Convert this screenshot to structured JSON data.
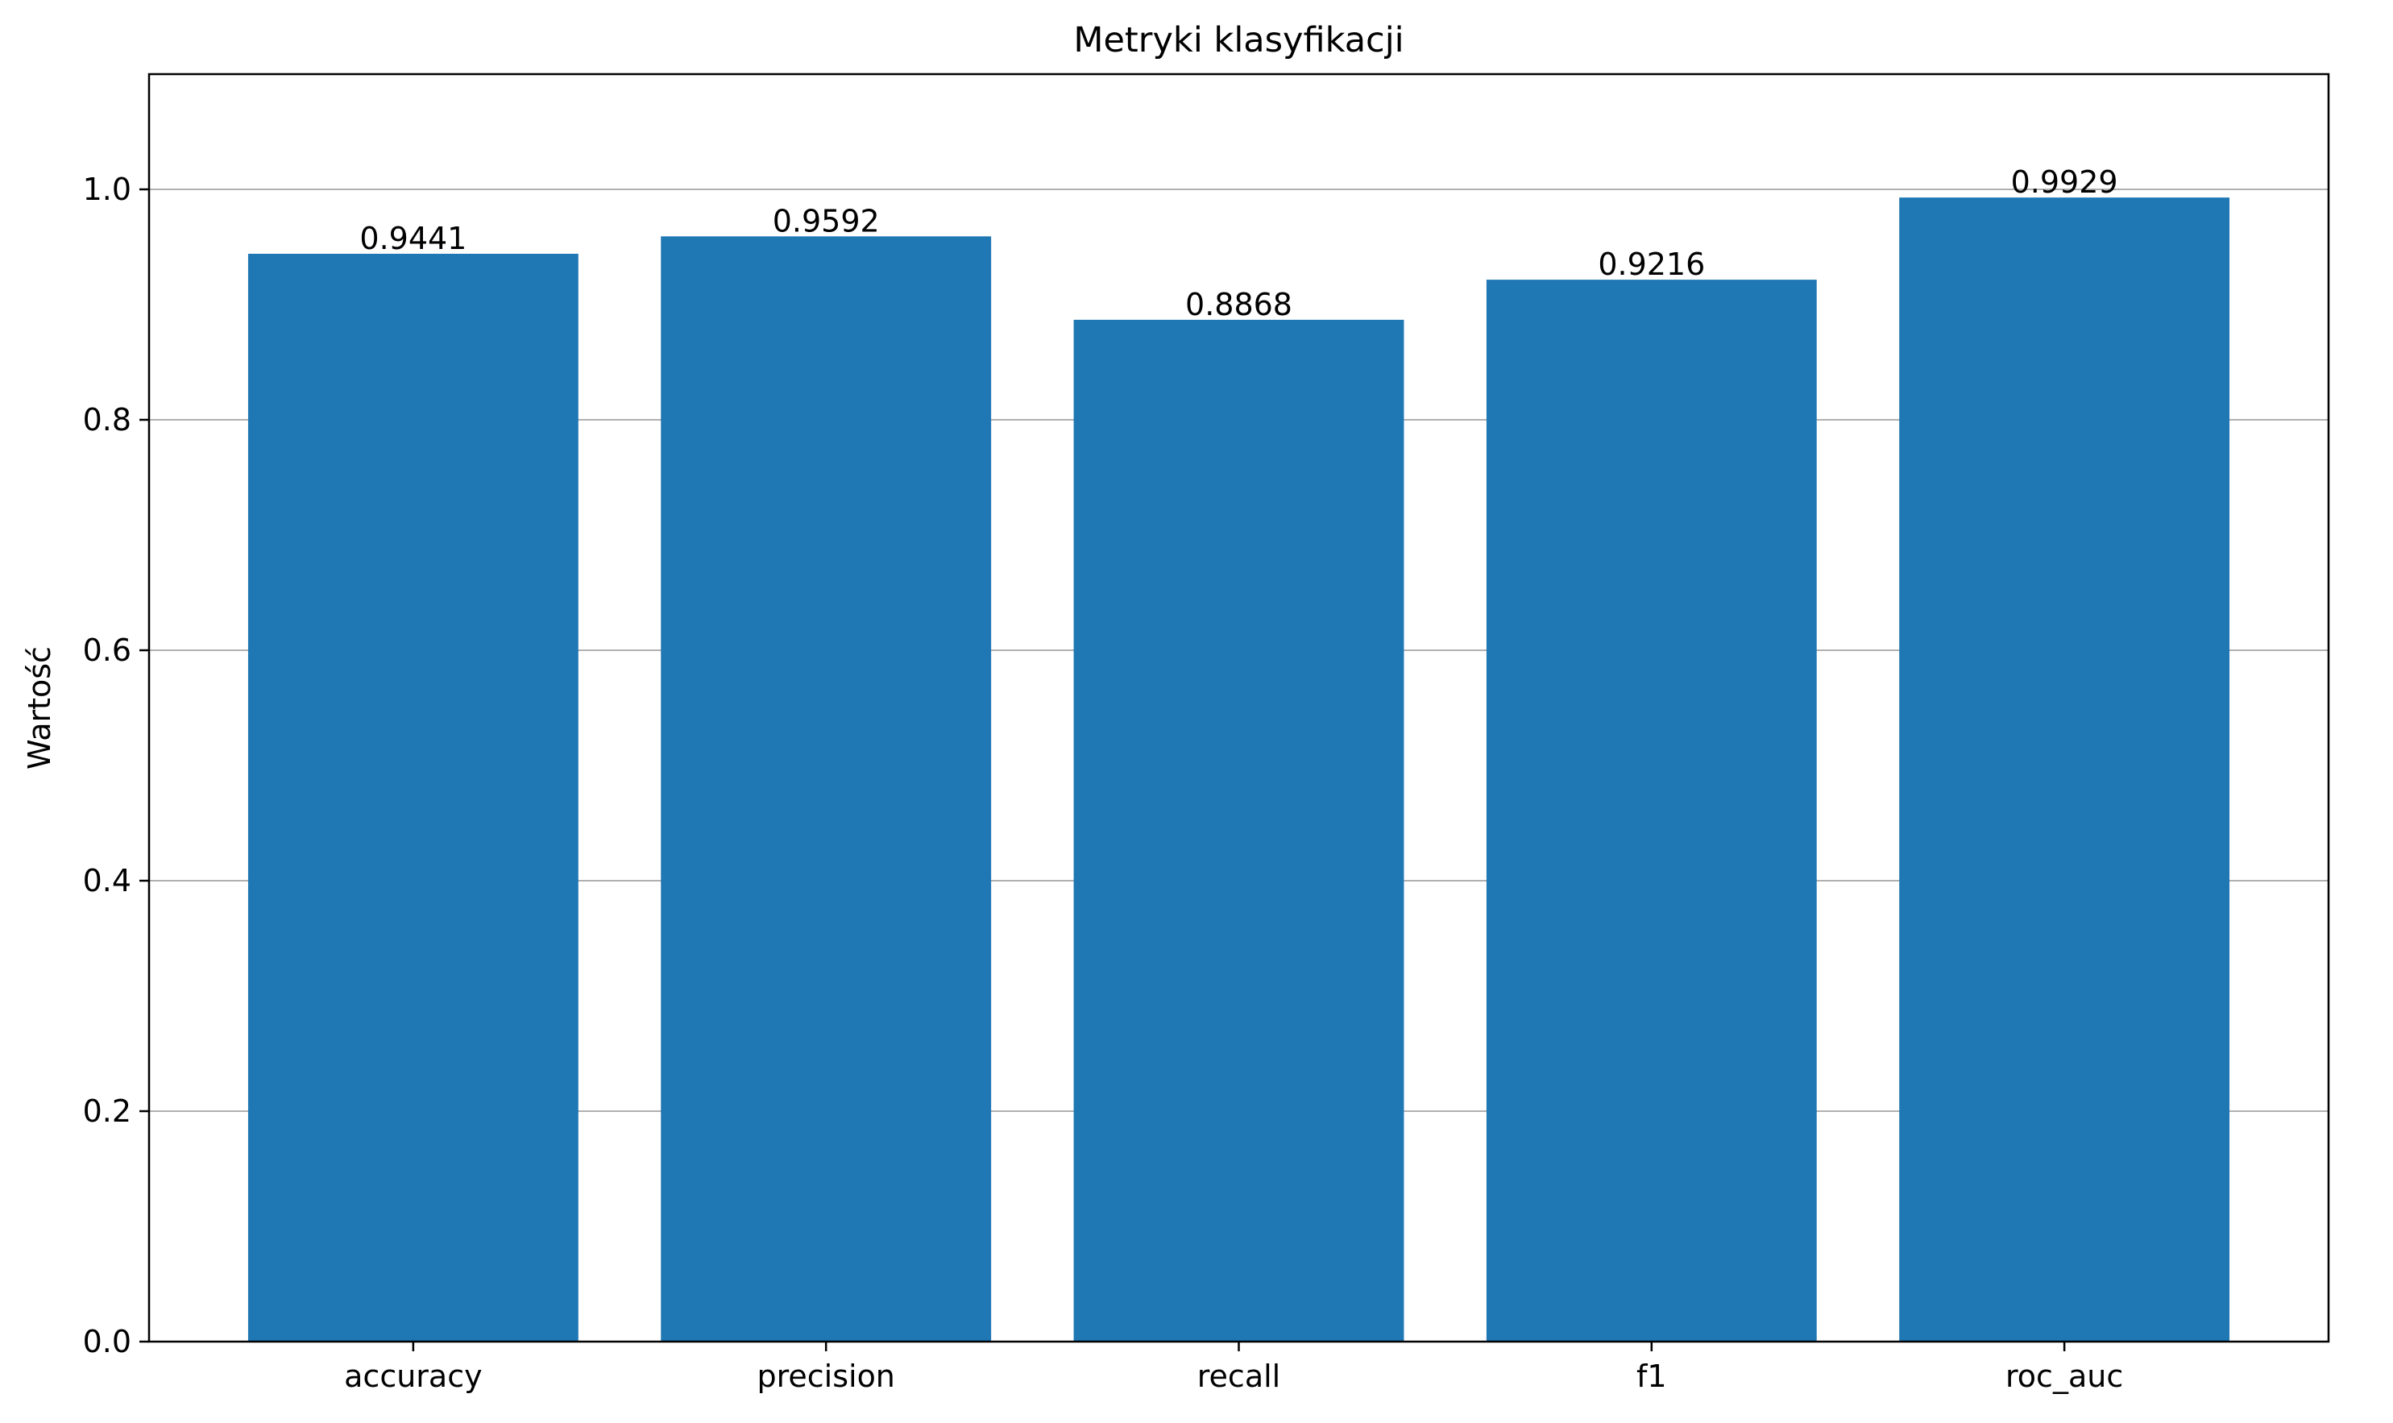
{
  "chart_data": {
    "type": "bar",
    "title": "Metryki klasyfikacji",
    "xlabel": "",
    "ylabel": "Wartość",
    "categories": [
      "accuracy",
      "precision",
      "recall",
      "f1",
      "roc_auc"
    ],
    "values": [
      0.9441,
      0.9592,
      0.8868,
      0.9216,
      0.9929
    ],
    "value_labels": [
      "0.9441",
      "0.9592",
      "0.8868",
      "0.9216",
      "0.9929"
    ],
    "ylim": [
      0,
      1.1
    ],
    "yticks": [
      0.0,
      0.2,
      0.4,
      0.6,
      0.8,
      1.0
    ],
    "ytick_labels": [
      "0.0",
      "0.2",
      "0.4",
      "0.6",
      "0.8",
      "1.0"
    ],
    "grid": "y",
    "legend": "none",
    "bar_color": "#1f77b4",
    "grid_color": "#b0b0b0"
  }
}
